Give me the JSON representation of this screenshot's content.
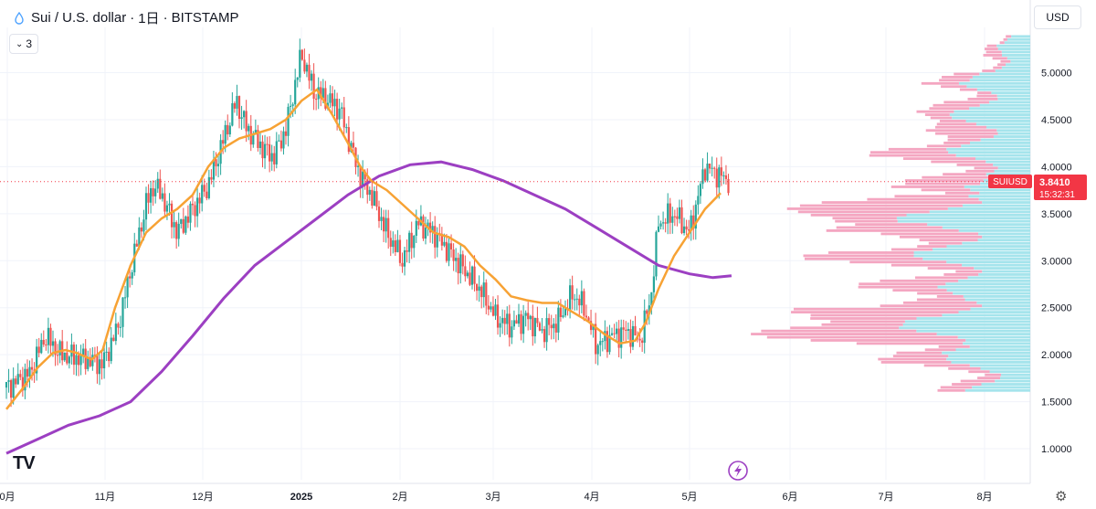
{
  "header": {
    "symbol_title": "Sui / U.S. dollar",
    "interval": "1日",
    "exchange": "BITSTAMP",
    "separator": "·",
    "indicators_count": "3",
    "currency_button": "USD",
    "logo_text": "TV"
  },
  "chart_data": {
    "type": "candlestick",
    "symbol": "SUIUSD",
    "last_price": "3.8410",
    "countdown": "15:32:31",
    "y_axis": {
      "ticks": [
        "1.0000",
        "1.5000",
        "2.0000",
        "2.5000",
        "3.0000",
        "3.5000",
        "4.0000",
        "4.5000",
        "5.0000"
      ],
      "ylim": [
        0.8,
        5.4
      ]
    },
    "x_axis": {
      "ticks": [
        "0月",
        "11月",
        "12月",
        "2025",
        "2月",
        "3月",
        "4月",
        "5月",
        "6月",
        "7月",
        "8月"
      ]
    },
    "colors": {
      "up": "#26a69a",
      "down": "#ef5350",
      "ma_fast": "#f7a234",
      "ma_slow": "#9c3fc2",
      "vp_up": "#a5e4ec",
      "vp_down": "#f4a6c1",
      "price_label": "#f23645"
    },
    "ma_fast": [
      [
        0,
        1.42
      ],
      [
        10,
        1.63
      ],
      [
        20,
        1.86
      ],
      [
        30,
        2.02
      ],
      [
        38,
        2.05
      ],
      [
        45,
        2.02
      ],
      [
        55,
        1.95
      ],
      [
        62,
        2.05
      ],
      [
        70,
        2.5
      ],
      [
        80,
        2.95
      ],
      [
        90,
        3.3
      ],
      [
        100,
        3.45
      ],
      [
        110,
        3.55
      ],
      [
        120,
        3.7
      ],
      [
        130,
        4.0
      ],
      [
        140,
        4.2
      ],
      [
        150,
        4.3
      ],
      [
        160,
        4.35
      ],
      [
        170,
        4.4
      ],
      [
        180,
        4.5
      ],
      [
        190,
        4.7
      ],
      [
        200,
        4.82
      ],
      [
        210,
        4.55
      ],
      [
        220,
        4.25
      ],
      [
        228,
        4.0
      ],
      [
        235,
        3.85
      ],
      [
        245,
        3.75
      ],
      [
        255,
        3.6
      ],
      [
        265,
        3.45
      ],
      [
        275,
        3.3
      ],
      [
        285,
        3.25
      ],
      [
        295,
        3.15
      ],
      [
        305,
        2.95
      ],
      [
        315,
        2.8
      ],
      [
        325,
        2.62
      ],
      [
        335,
        2.58
      ],
      [
        345,
        2.55
      ],
      [
        355,
        2.55
      ],
      [
        365,
        2.45
      ],
      [
        375,
        2.35
      ],
      [
        385,
        2.22
      ],
      [
        395,
        2.12
      ],
      [
        405,
        2.15
      ],
      [
        412,
        2.35
      ],
      [
        420,
        2.7
      ],
      [
        430,
        3.05
      ],
      [
        440,
        3.3
      ],
      [
        450,
        3.55
      ],
      [
        460,
        3.72
      ]
    ],
    "ma_slow": [
      [
        0,
        0.95
      ],
      [
        20,
        1.1
      ],
      [
        40,
        1.25
      ],
      [
        60,
        1.35
      ],
      [
        80,
        1.5
      ],
      [
        100,
        1.82
      ],
      [
        120,
        2.2
      ],
      [
        140,
        2.6
      ],
      [
        160,
        2.95
      ],
      [
        180,
        3.2
      ],
      [
        200,
        3.45
      ],
      [
        220,
        3.7
      ],
      [
        240,
        3.9
      ],
      [
        260,
        4.02
      ],
      [
        280,
        4.05
      ],
      [
        300,
        3.97
      ],
      [
        320,
        3.85
      ],
      [
        340,
        3.7
      ],
      [
        360,
        3.55
      ],
      [
        380,
        3.35
      ],
      [
        400,
        3.15
      ],
      [
        420,
        2.95
      ],
      [
        440,
        2.86
      ],
      [
        455,
        2.82
      ],
      [
        467,
        2.84
      ]
    ],
    "candles_seed": [
      [
        0,
        1.65
      ],
      [
        15,
        1.8
      ],
      [
        25,
        2.2
      ],
      [
        35,
        2.0
      ],
      [
        52,
        1.95
      ],
      [
        62,
        1.9
      ],
      [
        72,
        2.3
      ],
      [
        80,
        2.9
      ],
      [
        90,
        3.6
      ],
      [
        95,
        3.8
      ],
      [
        100,
        3.7
      ],
      [
        110,
        3.3
      ],
      [
        120,
        3.55
      ],
      [
        130,
        3.8
      ],
      [
        140,
        4.3
      ],
      [
        148,
        4.7
      ],
      [
        155,
        4.4
      ],
      [
        165,
        4.2
      ],
      [
        172,
        4.1
      ],
      [
        180,
        4.4
      ],
      [
        190,
        5.2
      ],
      [
        198,
        4.8
      ],
      [
        208,
        4.7
      ],
      [
        215,
        4.6
      ],
      [
        222,
        4.2
      ],
      [
        228,
        3.9
      ],
      [
        235,
        3.7
      ],
      [
        245,
        3.3
      ],
      [
        255,
        3.0
      ],
      [
        265,
        3.4
      ],
      [
        275,
        3.3
      ],
      [
        285,
        3.1
      ],
      [
        295,
        2.9
      ],
      [
        305,
        2.7
      ],
      [
        315,
        2.4
      ],
      [
        325,
        2.3
      ],
      [
        335,
        2.4
      ],
      [
        345,
        2.25
      ],
      [
        355,
        2.35
      ],
      [
        365,
        2.65
      ],
      [
        372,
        2.5
      ],
      [
        380,
        2.1
      ],
      [
        390,
        2.2
      ],
      [
        400,
        2.25
      ],
      [
        408,
        2.15
      ],
      [
        415,
        2.6
      ],
      [
        420,
        3.4
      ],
      [
        430,
        3.5
      ],
      [
        440,
        3.3
      ],
      [
        450,
        4.0
      ],
      [
        460,
        3.9
      ],
      [
        466,
        3.84
      ]
    ],
    "volume_profile": [
      [
        1.6,
        20,
        8
      ],
      [
        1.7,
        18,
        12
      ],
      [
        1.8,
        22,
        14
      ],
      [
        1.9,
        25,
        18
      ],
      [
        2.0,
        30,
        22
      ],
      [
        2.1,
        40,
        50
      ],
      [
        2.2,
        42,
        48
      ],
      [
        2.3,
        38,
        55
      ],
      [
        2.4,
        35,
        45
      ],
      [
        2.5,
        30,
        30
      ],
      [
        2.6,
        25,
        20
      ],
      [
        2.7,
        28,
        22
      ],
      [
        2.8,
        30,
        20
      ],
      [
        2.9,
        32,
        28
      ],
      [
        3.0,
        35,
        30
      ],
      [
        3.1,
        32,
        22
      ],
      [
        3.2,
        30,
        25
      ],
      [
        3.3,
        34,
        35
      ],
      [
        3.4,
        40,
        45
      ],
      [
        3.5,
        38,
        42
      ],
      [
        3.6,
        30,
        50
      ],
      [
        3.7,
        20,
        25
      ],
      [
        3.8,
        15,
        20
      ],
      [
        3.9,
        20,
        18
      ],
      [
        4.0,
        22,
        20
      ],
      [
        4.1,
        25,
        22
      ],
      [
        4.2,
        22,
        20
      ],
      [
        4.3,
        20,
        18
      ],
      [
        4.4,
        22,
        14
      ],
      [
        4.5,
        24,
        16
      ],
      [
        4.6,
        22,
        12
      ],
      [
        4.7,
        20,
        10
      ],
      [
        4.8,
        22,
        12
      ],
      [
        4.9,
        18,
        8
      ],
      [
        5.0,
        15,
        6
      ],
      [
        5.1,
        12,
        5
      ],
      [
        5.2,
        10,
        4
      ],
      [
        5.3,
        8,
        3
      ]
    ]
  }
}
